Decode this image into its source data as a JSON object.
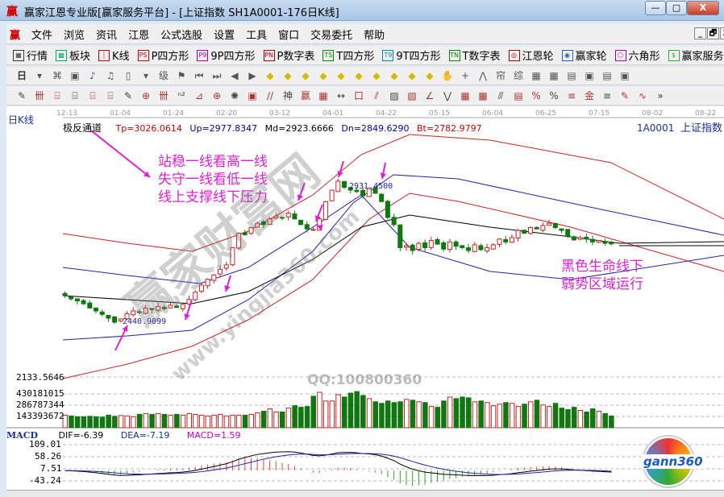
{
  "window": {
    "title": "赢家江恩专业版[赢家服务平台] - [上证指数  SH1A0001-176日K线]",
    "logo": "赢",
    "minimize": "—",
    "restore": "▢",
    "close": "X"
  },
  "menu": {
    "logo": "赢",
    "items": [
      "文件",
      "浏览",
      "资讯",
      "江恩",
      "公式选股",
      "设置",
      "工具",
      "窗口",
      "交易委托",
      "帮助"
    ],
    "mdi": [
      "_",
      "🗗",
      "X"
    ]
  },
  "toolbar1": [
    {
      "icon": "grid-icon",
      "glyph": "▦",
      "label": "行情"
    },
    {
      "icon": "blocks-icon",
      "glyph": "▩",
      "label": "板块"
    },
    {
      "icon": "candles-icon",
      "glyph": "┆",
      "label": "K线"
    },
    {
      "icon": "ps-icon",
      "glyph": "PS",
      "label": "P四方形"
    },
    {
      "icon": "p9-icon",
      "glyph": "P9",
      "label": "9P四方形"
    },
    {
      "icon": "pn-icon",
      "glyph": "PN",
      "label": "P数字表"
    },
    {
      "icon": "ts-icon",
      "glyph": "TS",
      "label": "T四方形"
    },
    {
      "icon": "t9-icon",
      "glyph": "T9",
      "label": "9T四方形"
    },
    {
      "icon": "tn-icon",
      "glyph": "TN",
      "label": "T数字表"
    },
    {
      "icon": "target-icon",
      "glyph": "◎",
      "label": "江恩轮"
    },
    {
      "icon": "big-icon",
      "glyph": "◉",
      "label": "赢家轮"
    },
    {
      "icon": "hexagon-icon",
      "glyph": "⬡",
      "label": "六角形"
    },
    {
      "icon": "dollar-icon",
      "glyph": "$",
      "label": "赢家服务"
    }
  ],
  "toolbar2": {
    "period": "日",
    "tools": [
      "▾",
      "⌘",
      "▣",
      "♪",
      "♫",
      "▯",
      "▾",
      "级",
      "⚑",
      "⏮",
      "⏭",
      "◀",
      "▶",
      "◆",
      "◆",
      "◆",
      "◆",
      "◆",
      "◆",
      "◆",
      "◆",
      "◆",
      "◆",
      "✋",
      "+",
      "⋀",
      "帘",
      "综",
      "▦",
      "▦",
      "▤",
      "▣",
      "▤",
      "▣"
    ]
  },
  "toolbar3": {
    "tools": [
      "✎",
      "卌",
      "⌸",
      "⌸",
      "⌸",
      "⌸",
      "✎",
      "⊕",
      "卌",
      "ⁿ²",
      "⊿",
      "⊕",
      "✺",
      "▣",
      "//",
      "神",
      "赢",
      "▦",
      "↔",
      "口",
      "⫽",
      "▨",
      "▧",
      "∠",
      "⋁",
      "▦",
      "▦",
      "⫻",
      "▤",
      "%",
      "%",
      "≡",
      "金",
      "≡",
      "✎",
      "∿"
    ],
    "more": "»"
  },
  "chart": {
    "period_label": "日K线",
    "dates": [
      "12-13",
      "01-04",
      "01-24",
      "02-20",
      "03-12",
      "04-01",
      "04-22",
      "05-15",
      "06-04",
      "06-25",
      "07-15",
      "08-02",
      "08-22"
    ],
    "indicator": {
      "name": "极反通道",
      "tp": "Tp=3026.0614",
      "up": "Up=2977.8347",
      "md": "Md=2923.6666",
      "dn": "Dn=2849.6290",
      "bt": "Bt=2782.9797"
    },
    "symbol": "1A0001",
    "symbol_name": "上证指数",
    "low_label": "2440.9099",
    "high_label": "2931.4500",
    "axis_label": "2133.5646",
    "closes": [
      2533,
      2522,
      2515,
      2505,
      2490,
      2480,
      2468,
      2455,
      2441,
      2452,
      2470,
      2480,
      2475,
      2490,
      2485,
      2495,
      2488,
      2500,
      2492,
      2503,
      2520,
      2545,
      2570,
      2590,
      2605,
      2625,
      2640,
      2700,
      2750,
      2745,
      2770,
      2785,
      2780,
      2800,
      2810,
      2805,
      2820,
      2800,
      2780,
      2765,
      2763,
      2800,
      2860,
      2900,
      2931,
      2910,
      2900,
      2895,
      2880,
      2905,
      2889,
      2860,
      2805,
      2780,
      2700,
      2707,
      2690,
      2715,
      2700,
      2725,
      2712,
      2695,
      2720,
      2705,
      2700,
      2690,
      2710,
      2693,
      2700,
      2710,
      2730,
      2720,
      2735,
      2760,
      2750,
      2770,
      2765,
      2777,
      2785,
      2770,
      2760,
      2740,
      2727,
      2735,
      2730,
      2720,
      2725,
      2715,
      2713
    ],
    "annotations": {
      "a1": "站稳一线看高一线",
      "a2": "失守一线看低一线",
      "a3": "线上支撑线下压力",
      "b1": "黑色生命线下",
      "b2": "弱势区域运行"
    },
    "colors": {
      "up": "#cc2222",
      "down": "#117711",
      "annotation": "#e020d0"
    }
  },
  "volume": {
    "ticks": [
      "430181015",
      "286787344",
      "143393672"
    ],
    "values": [
      160000000.0,
      150000000.0,
      140000000.0,
      140000000.0,
      145000000.0,
      140000000.0,
      135000000.0,
      160000000.0,
      145000000.0,
      155000000.0,
      150000000.0,
      140000000.0,
      170000000.0,
      180000000.0,
      170000000.0,
      180000000.0,
      170000000.0,
      160000000.0,
      170000000.0,
      160000000.0,
      180000000.0,
      170000000.0,
      160000000.0,
      150000000.0,
      160000000.0,
      170000000.0,
      150000000.0,
      160000000.0,
      160000000.0,
      160000000.0,
      170000000.0,
      190000000.0,
      210000000.0,
      240000000.0,
      200000000.0,
      200000000.0,
      250000000.0,
      280000000.0,
      260000000.0,
      270000000.0,
      400000000.0,
      450000000.0,
      340000000.0,
      340000000.0,
      420000000.0,
      390000000.0,
      440000000.0,
      460000000.0,
      410000000.0,
      370000000.0,
      330000000.0,
      310000000.0,
      340000000.0,
      320000000.0,
      330000000.0,
      360000000.0,
      350000000.0,
      330000000.0,
      320000000.0,
      270000000.0,
      260000000.0,
      340000000.0,
      390000000.0,
      370000000.0,
      390000000.0,
      380000000.0,
      330000000.0,
      340000000.0,
      320000000.0,
      280000000.0,
      300000000.0,
      320000000.0,
      310000000.0,
      270000000.0,
      300000000.0,
      330000000.0,
      350000000.0,
      290000000.0,
      270000000.0,
      310000000.0,
      250000000.0,
      230000000.0,
      260000000.0,
      220000000.0,
      200000000.0,
      240000000.0,
      210000000.0,
      180000000.0,
      150000000.0
    ]
  },
  "macd": {
    "label": "MACD",
    "dif": "DIF=-6.39",
    "dea": "DEA=-7.19",
    "macd": "MACD=1.59",
    "ticks": [
      "109.01",
      "58.26",
      "7.51",
      "-43.24"
    ]
  },
  "watermark": {
    "site": "赢家财富网",
    "url": "www.yingjia360.com",
    "qq": "QQ:100800360",
    "logo": "gann360"
  }
}
